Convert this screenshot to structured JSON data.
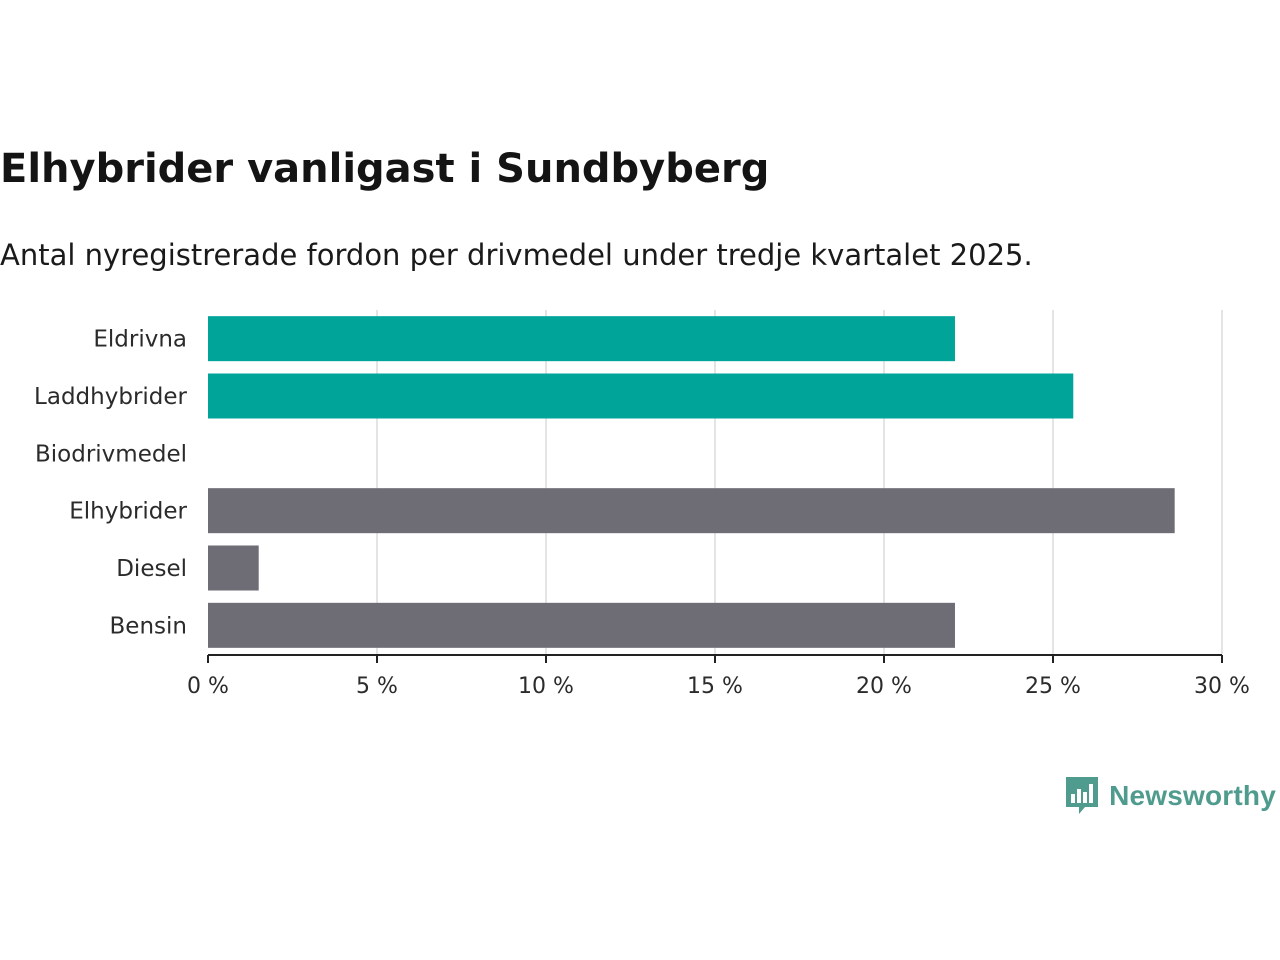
{
  "title": "Elhybrider vanligast i Sundbyberg",
  "subtitle": "Antal nyregistrerade fordon per drivmedel under tredje kvartalet 2025.",
  "brand": {
    "name": "Newsworthy",
    "color": "#4f9c8e"
  },
  "chart_data": {
    "type": "bar",
    "orientation": "horizontal",
    "categories": [
      "Eldrivna",
      "Laddhybrider",
      "Biodrivmedel",
      "Elhybrider",
      "Diesel",
      "Bensin"
    ],
    "values": [
      22.1,
      25.6,
      0,
      28.6,
      1.5,
      22.1
    ],
    "colors": [
      "#00a499",
      "#00a499",
      "#00a499",
      "#6e6d75",
      "#6e6d75",
      "#6e6d75"
    ],
    "x_ticks": [
      0,
      5,
      10,
      15,
      20,
      25,
      30
    ],
    "x_tick_labels": [
      "0 %",
      "5 %",
      "10 %",
      "15 %",
      "20 %",
      "25 %",
      "30 %"
    ],
    "xlim": [
      0,
      30
    ],
    "grid": true,
    "xlabel": "",
    "ylabel": ""
  }
}
